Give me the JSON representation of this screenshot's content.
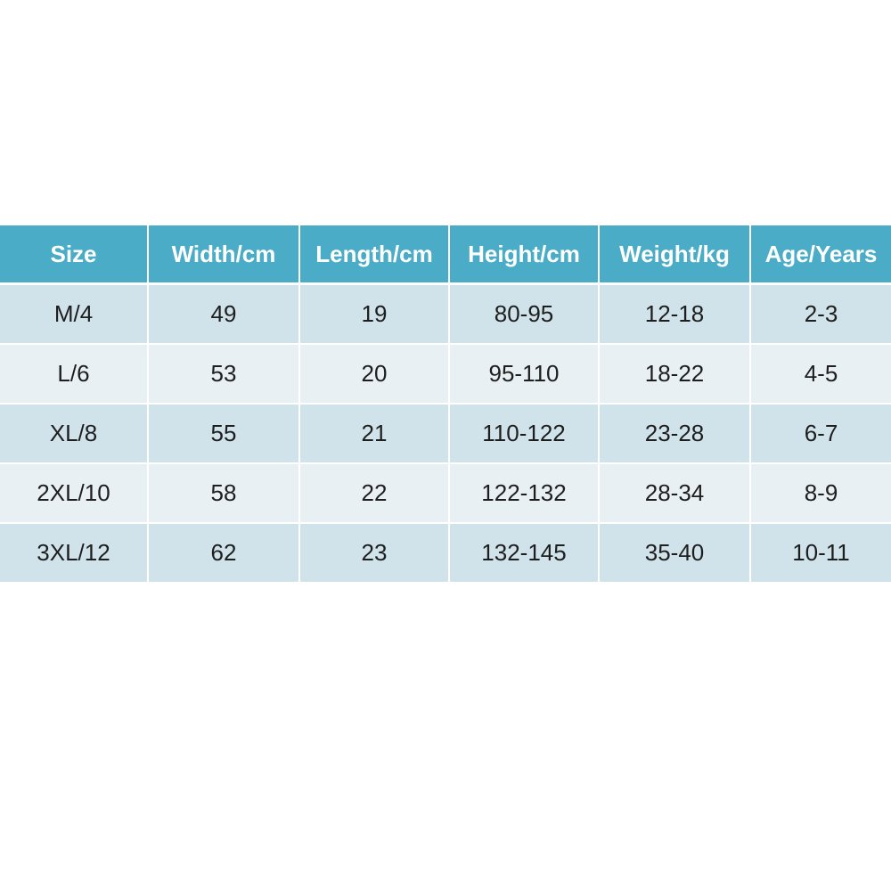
{
  "table": {
    "header": [
      "Size",
      "Width/cm",
      "Length/cm",
      "Height/cm",
      "Weight/kg",
      "Age/Years"
    ],
    "rows": [
      [
        "M/4",
        "49",
        "19",
        "80-95",
        "12-18",
        "2-3"
      ],
      [
        "L/6",
        "53",
        "20",
        "95-110",
        "18-22",
        "4-5"
      ],
      [
        "XL/8",
        "55",
        "21",
        "110-122",
        "23-28",
        "6-7"
      ],
      [
        "2XL/10",
        "58",
        "22",
        "122-132",
        "28-34",
        "8-9"
      ],
      [
        "3XL/12",
        "62",
        "23",
        "132-145",
        "35-40",
        "10-11"
      ]
    ]
  }
}
